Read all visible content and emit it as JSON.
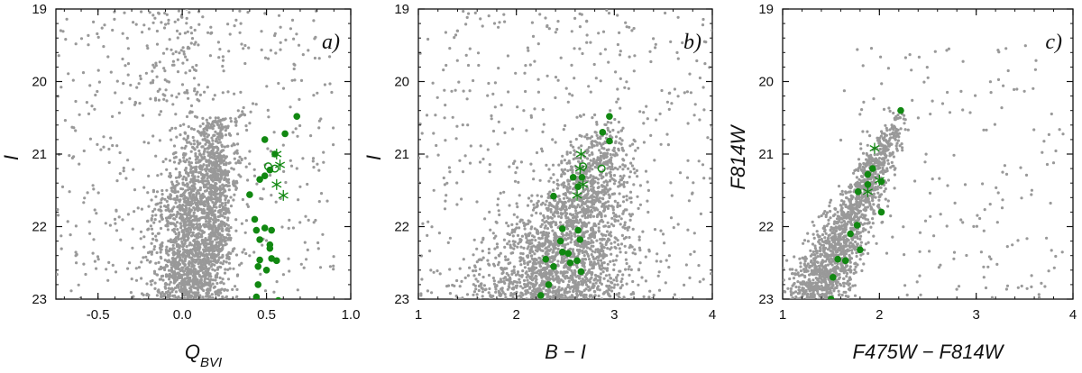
{
  "chart_data": [
    {
      "type": "scatter",
      "panel_label": "a)",
      "xlabel": "Q",
      "xlabel_sub": "BVI",
      "ylabel": "I",
      "xlim": [
        -0.75,
        1.0
      ],
      "ylim": [
        23,
        19
      ],
      "x_ticks": [
        -0.5,
        0.0,
        0.5,
        1.0
      ],
      "x_tick_labels": [
        "-0.5",
        "0.0",
        "0.5",
        "1.0"
      ],
      "y_ticks": [
        19,
        20,
        21,
        22,
        23
      ],
      "y_tick_labels": [
        "19",
        "20",
        "21",
        "22",
        "23"
      ],
      "background_color": "#999999",
      "highlight_color": "#118811",
      "background_density": "dense vertical band x≈-0.15..0.3 at I 20.5..23, plus sparse field",
      "series": [
        {
          "marker": "filled-circle",
          "points": [
            [
              0.68,
              20.48
            ],
            [
              0.61,
              20.72
            ],
            [
              0.49,
              20.8
            ],
            [
              0.55,
              21.0
            ],
            [
              0.52,
              21.22
            ],
            [
              0.49,
              21.3
            ],
            [
              0.46,
              21.35
            ],
            [
              0.4,
              21.56
            ],
            [
              0.43,
              21.9
            ],
            [
              0.44,
              22.05
            ],
            [
              0.49,
              22.02
            ],
            [
              0.53,
              22.05
            ],
            [
              0.46,
              22.18
            ],
            [
              0.52,
              22.25
            ],
            [
              0.52,
              22.3
            ],
            [
              0.46,
              22.46
            ],
            [
              0.53,
              22.44
            ],
            [
              0.56,
              22.47
            ],
            [
              0.45,
              22.55
            ],
            [
              0.5,
              22.6
            ],
            [
              0.45,
              22.8
            ],
            [
              0.44,
              22.97
            ],
            [
              0.57,
              23.02
            ]
          ]
        },
        {
          "marker": "open-circle",
          "points": [
            [
              0.51,
              21.17
            ],
            [
              0.55,
              21.2
            ]
          ]
        },
        {
          "marker": "asterisk",
          "points": [
            [
              0.56,
              21.0
            ],
            [
              0.58,
              21.15
            ],
            [
              0.56,
              21.42
            ],
            [
              0.6,
              21.57
            ]
          ]
        }
      ]
    },
    {
      "type": "scatter",
      "panel_label": "b)",
      "xlabel": "B − I",
      "ylabel": "I",
      "xlim": [
        1,
        4
      ],
      "ylim": [
        23,
        19
      ],
      "x_ticks": [
        1,
        2,
        3,
        4
      ],
      "x_tick_labels": [
        "1",
        "2",
        "3",
        "4"
      ],
      "y_ticks": [
        19,
        20,
        21,
        22,
        23
      ],
      "y_tick_labels": [
        "19",
        "20",
        "21",
        "22",
        "23"
      ],
      "background_color": "#999999",
      "highlight_color": "#118811",
      "background_density": "dense lower main sequence B-I≈1.4..2.4 at I 22..23, diagonal band to red giant tip near B-I≈2.9, I≈20.6",
      "series": [
        {
          "marker": "filled-circle",
          "points": [
            [
              2.95,
              20.48
            ],
            [
              2.88,
              20.7
            ],
            [
              2.95,
              20.82
            ],
            [
              2.58,
              21.32
            ],
            [
              2.67,
              21.32
            ],
            [
              2.63,
              21.45
            ],
            [
              2.38,
              21.58
            ],
            [
              2.47,
              22.03
            ],
            [
              2.45,
              22.2
            ],
            [
              2.63,
              22.05
            ],
            [
              2.65,
              22.18
            ],
            [
              2.47,
              22.35
            ],
            [
              2.53,
              22.37
            ],
            [
              2.3,
              22.45
            ],
            [
              2.55,
              22.5
            ],
            [
              2.62,
              22.47
            ],
            [
              2.38,
              22.55
            ],
            [
              2.66,
              22.62
            ],
            [
              2.25,
              22.95
            ],
            [
              2.33,
              22.8
            ]
          ]
        },
        {
          "marker": "open-circle",
          "points": [
            [
              2.68,
              21.17
            ],
            [
              2.87,
              21.2
            ]
          ]
        },
        {
          "marker": "asterisk",
          "points": [
            [
              2.66,
              21.0
            ],
            [
              2.65,
              21.2
            ],
            [
              2.68,
              21.42
            ],
            [
              2.62,
              21.57
            ]
          ]
        }
      ]
    },
    {
      "type": "scatter",
      "panel_label": "c)",
      "xlabel": "F475W − F814W",
      "ylabel": "F814W",
      "xlim": [
        1,
        4
      ],
      "ylim": [
        23,
        19
      ],
      "x_ticks": [
        1,
        2,
        3,
        4
      ],
      "x_tick_labels": [
        "1",
        "2",
        "3",
        "4"
      ],
      "y_ticks": [
        19,
        20,
        21,
        22,
        23
      ],
      "y_tick_labels": [
        "19",
        "20",
        "21",
        "22",
        "23"
      ],
      "background_color": "#999999",
      "highlight_color": "#118811",
      "background_density": "narrow diagonal sequence from (1.3,23) to (2.25,20.4), sparse field to the right",
      "series": [
        {
          "marker": "filled-circle",
          "points": [
            [
              2.22,
              20.4
            ],
            [
              1.93,
              21.2
            ],
            [
              1.88,
              21.28
            ],
            [
              1.88,
              21.42
            ],
            [
              1.78,
              21.52
            ],
            [
              2.02,
              21.38
            ],
            [
              2.02,
              21.8
            ],
            [
              1.77,
              21.98
            ],
            [
              1.7,
              22.1
            ],
            [
              1.8,
              22.32
            ],
            [
              1.57,
              22.45
            ],
            [
              1.65,
              22.47
            ],
            [
              1.52,
              22.7
            ],
            [
              1.5,
              23.0
            ]
          ]
        },
        {
          "marker": "asterisk",
          "points": [
            [
              1.95,
              20.92
            ],
            [
              2.0,
              21.36
            ],
            [
              1.88,
              21.52
            ]
          ]
        }
      ]
    }
  ]
}
